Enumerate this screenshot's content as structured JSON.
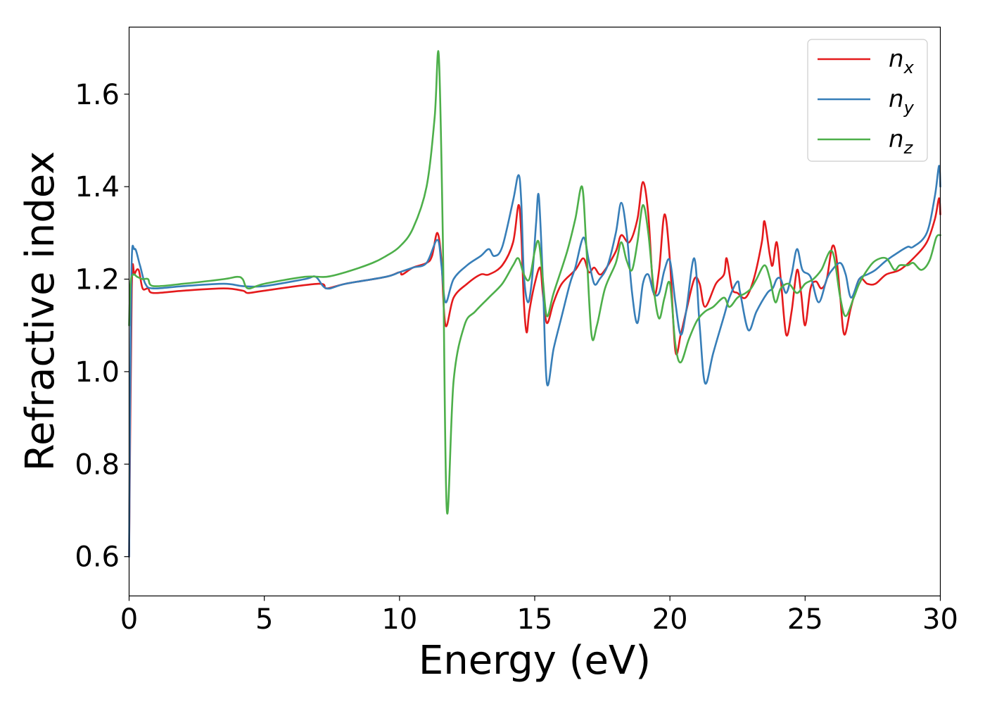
{
  "chart_data": {
    "type": "line",
    "title": "",
    "xlabel": "Energy (eV)",
    "ylabel": "Refractive index",
    "xlim": [
      0,
      30
    ],
    "ylim": [
      0.515,
      1.745
    ],
    "xticks": [
      0,
      5,
      10,
      15,
      20,
      25,
      30
    ],
    "xtick_labels": [
      "0",
      "5",
      "10",
      "15",
      "20",
      "25",
      "30"
    ],
    "yticks": [
      0.6,
      0.8,
      1.0,
      1.2,
      1.4,
      1.6
    ],
    "ytick_labels": [
      "0.6",
      "0.8",
      "1.0",
      "1.2",
      "1.4",
      "1.6"
    ],
    "grid": false,
    "legend_position": "top-right",
    "series": [
      {
        "name": "n_x",
        "label_main": "n",
        "label_sub": "x",
        "color": "#e41a1c",
        "points": [
          [
            0,
            0.6
          ],
          [
            0.1,
            1.18
          ],
          [
            0.2,
            1.21
          ],
          [
            0.35,
            1.22
          ],
          [
            0.5,
            1.18
          ],
          [
            0.7,
            1.18
          ],
          [
            0.9,
            1.17
          ],
          [
            2,
            1.175
          ],
          [
            3.5,
            1.18
          ],
          [
            4.2,
            1.175
          ],
          [
            4.4,
            1.17
          ],
          [
            5,
            1.175
          ],
          [
            7,
            1.19
          ],
          [
            7.3,
            1.18
          ],
          [
            8,
            1.19
          ],
          [
            9.5,
            1.205
          ],
          [
            10,
            1.215
          ],
          [
            10.1,
            1.21
          ],
          [
            10.5,
            1.225
          ],
          [
            11,
            1.235
          ],
          [
            11.2,
            1.25
          ],
          [
            11.4,
            1.3
          ],
          [
            11.55,
            1.24
          ],
          [
            11.7,
            1.1
          ],
          [
            12,
            1.16
          ],
          [
            12.5,
            1.19
          ],
          [
            13,
            1.21
          ],
          [
            13.3,
            1.21
          ],
          [
            13.8,
            1.23
          ],
          [
            14.2,
            1.28
          ],
          [
            14.4,
            1.36
          ],
          [
            14.5,
            1.3
          ],
          [
            14.6,
            1.15
          ],
          [
            14.7,
            1.085
          ],
          [
            14.8,
            1.13
          ],
          [
            15,
            1.19
          ],
          [
            15.2,
            1.225
          ],
          [
            15.3,
            1.17
          ],
          [
            15.45,
            1.105
          ],
          [
            15.7,
            1.15
          ],
          [
            16,
            1.19
          ],
          [
            16.5,
            1.22
          ],
          [
            16.8,
            1.245
          ],
          [
            17,
            1.215
          ],
          [
            17.2,
            1.225
          ],
          [
            17.4,
            1.21
          ],
          [
            17.6,
            1.22
          ],
          [
            18,
            1.26
          ],
          [
            18.2,
            1.295
          ],
          [
            18.5,
            1.28
          ],
          [
            18.8,
            1.33
          ],
          [
            19,
            1.41
          ],
          [
            19.2,
            1.34
          ],
          [
            19.4,
            1.17
          ],
          [
            19.6,
            1.22
          ],
          [
            19.8,
            1.34
          ],
          [
            20,
            1.24
          ],
          [
            20.2,
            1.045
          ],
          [
            20.4,
            1.08
          ],
          [
            20.6,
            1.13
          ],
          [
            20.9,
            1.2
          ],
          [
            21.1,
            1.19
          ],
          [
            21.3,
            1.14
          ],
          [
            21.7,
            1.19
          ],
          [
            22,
            1.21
          ],
          [
            22.1,
            1.245
          ],
          [
            22.3,
            1.18
          ],
          [
            22.5,
            1.17
          ],
          [
            22.8,
            1.16
          ],
          [
            23.1,
            1.2
          ],
          [
            23.4,
            1.28
          ],
          [
            23.5,
            1.325
          ],
          [
            23.7,
            1.25
          ],
          [
            23.8,
            1.23
          ],
          [
            23.95,
            1.28
          ],
          [
            24.1,
            1.2
          ],
          [
            24.3,
            1.08
          ],
          [
            24.5,
            1.13
          ],
          [
            24.7,
            1.22
          ],
          [
            24.85,
            1.17
          ],
          [
            25,
            1.1
          ],
          [
            25.2,
            1.18
          ],
          [
            25.4,
            1.195
          ],
          [
            25.6,
            1.18
          ],
          [
            25.8,
            1.2
          ],
          [
            26,
            1.27
          ],
          [
            26.15,
            1.25
          ],
          [
            26.3,
            1.16
          ],
          [
            26.45,
            1.08
          ],
          [
            26.7,
            1.14
          ],
          [
            27,
            1.2
          ],
          [
            27.3,
            1.19
          ],
          [
            27.6,
            1.19
          ],
          [
            28,
            1.21
          ],
          [
            28.5,
            1.22
          ],
          [
            29,
            1.245
          ],
          [
            29.5,
            1.28
          ],
          [
            29.8,
            1.33
          ],
          [
            29.95,
            1.375
          ],
          [
            30,
            1.34
          ]
        ]
      },
      {
        "name": "n_y",
        "label_main": "n",
        "label_sub": "y",
        "color": "#377eb8",
        "points": [
          [
            0,
            0.6
          ],
          [
            0.08,
            1.2
          ],
          [
            0.2,
            1.265
          ],
          [
            0.4,
            1.23
          ],
          [
            0.6,
            1.19
          ],
          [
            0.9,
            1.18
          ],
          [
            2,
            1.185
          ],
          [
            3.5,
            1.19
          ],
          [
            4.2,
            1.185
          ],
          [
            5,
            1.185
          ],
          [
            6.5,
            1.2
          ],
          [
            6.9,
            1.205
          ],
          [
            7.3,
            1.18
          ],
          [
            8,
            1.19
          ],
          [
            9.5,
            1.205
          ],
          [
            10,
            1.215
          ],
          [
            10.5,
            1.225
          ],
          [
            11,
            1.235
          ],
          [
            11.4,
            1.285
          ],
          [
            11.55,
            1.23
          ],
          [
            11.7,
            1.15
          ],
          [
            12,
            1.2
          ],
          [
            12.5,
            1.23
          ],
          [
            13,
            1.25
          ],
          [
            13.3,
            1.265
          ],
          [
            13.5,
            1.25
          ],
          [
            13.8,
            1.27
          ],
          [
            14.2,
            1.37
          ],
          [
            14.4,
            1.425
          ],
          [
            14.5,
            1.37
          ],
          [
            14.6,
            1.21
          ],
          [
            14.75,
            1.15
          ],
          [
            14.9,
            1.2
          ],
          [
            15.05,
            1.32
          ],
          [
            15.15,
            1.38
          ],
          [
            15.3,
            1.2
          ],
          [
            15.45,
            0.975
          ],
          [
            15.7,
            1.05
          ],
          [
            16,
            1.12
          ],
          [
            16.3,
            1.19
          ],
          [
            16.5,
            1.225
          ],
          [
            16.8,
            1.29
          ],
          [
            17,
            1.24
          ],
          [
            17.2,
            1.19
          ],
          [
            17.4,
            1.2
          ],
          [
            17.7,
            1.23
          ],
          [
            18,
            1.3
          ],
          [
            18.2,
            1.365
          ],
          [
            18.4,
            1.3
          ],
          [
            18.6,
            1.17
          ],
          [
            18.8,
            1.105
          ],
          [
            19,
            1.19
          ],
          [
            19.2,
            1.21
          ],
          [
            19.4,
            1.17
          ],
          [
            19.6,
            1.17
          ],
          [
            19.8,
            1.22
          ],
          [
            20,
            1.24
          ],
          [
            20.2,
            1.15
          ],
          [
            20.4,
            1.08
          ],
          [
            20.6,
            1.13
          ],
          [
            20.9,
            1.245
          ],
          [
            21.1,
            1.1
          ],
          [
            21.3,
            0.975
          ],
          [
            21.6,
            1.04
          ],
          [
            22,
            1.12
          ],
          [
            22.2,
            1.16
          ],
          [
            22.5,
            1.195
          ],
          [
            22.6,
            1.17
          ],
          [
            22.9,
            1.09
          ],
          [
            23.2,
            1.13
          ],
          [
            23.6,
            1.17
          ],
          [
            23.8,
            1.18
          ],
          [
            23.95,
            1.2
          ],
          [
            24.1,
            1.2
          ],
          [
            24.3,
            1.17
          ],
          [
            24.5,
            1.21
          ],
          [
            24.7,
            1.265
          ],
          [
            24.9,
            1.22
          ],
          [
            25.2,
            1.205
          ],
          [
            25.5,
            1.15
          ],
          [
            25.8,
            1.2
          ],
          [
            26,
            1.22
          ],
          [
            26.3,
            1.235
          ],
          [
            26.5,
            1.21
          ],
          [
            26.7,
            1.16
          ],
          [
            27,
            1.2
          ],
          [
            27.3,
            1.21
          ],
          [
            27.6,
            1.22
          ],
          [
            28,
            1.24
          ],
          [
            28.5,
            1.26
          ],
          [
            28.8,
            1.27
          ],
          [
            29,
            1.27
          ],
          [
            29.5,
            1.3
          ],
          [
            29.8,
            1.38
          ],
          [
            29.95,
            1.445
          ],
          [
            30,
            1.4
          ]
        ]
      },
      {
        "name": "n_z",
        "label_main": "n",
        "label_sub": "z",
        "color": "#4daf4a",
        "points": [
          [
            0,
            1.1
          ],
          [
            0.05,
            1.19
          ],
          [
            0.15,
            1.21
          ],
          [
            0.3,
            1.205
          ],
          [
            0.5,
            1.2
          ],
          [
            0.7,
            1.2
          ],
          [
            0.9,
            1.185
          ],
          [
            2,
            1.19
          ],
          [
            3.5,
            1.2
          ],
          [
            4,
            1.205
          ],
          [
            4.2,
            1.2
          ],
          [
            4.4,
            1.18
          ],
          [
            5,
            1.19
          ],
          [
            6.5,
            1.205
          ],
          [
            7.3,
            1.205
          ],
          [
            8,
            1.215
          ],
          [
            9,
            1.235
          ],
          [
            9.5,
            1.25
          ],
          [
            10,
            1.27
          ],
          [
            10.5,
            1.31
          ],
          [
            11,
            1.4
          ],
          [
            11.3,
            1.55
          ],
          [
            11.45,
            1.685
          ],
          [
            11.6,
            1.3
          ],
          [
            11.75,
            0.7
          ],
          [
            12,
            0.98
          ],
          [
            12.4,
            1.1
          ],
          [
            12.8,
            1.13
          ],
          [
            13.3,
            1.16
          ],
          [
            13.8,
            1.19
          ],
          [
            14.2,
            1.23
          ],
          [
            14.4,
            1.245
          ],
          [
            14.6,
            1.21
          ],
          [
            14.8,
            1.2
          ],
          [
            15,
            1.26
          ],
          [
            15.15,
            1.28
          ],
          [
            15.3,
            1.2
          ],
          [
            15.45,
            1.12
          ],
          [
            15.7,
            1.17
          ],
          [
            16.2,
            1.26
          ],
          [
            16.5,
            1.33
          ],
          [
            16.75,
            1.4
          ],
          [
            16.9,
            1.28
          ],
          [
            17.1,
            1.08
          ],
          [
            17.3,
            1.1
          ],
          [
            17.6,
            1.18
          ],
          [
            18,
            1.235
          ],
          [
            18.2,
            1.28
          ],
          [
            18.4,
            1.24
          ],
          [
            18.6,
            1.22
          ],
          [
            18.8,
            1.28
          ],
          [
            19,
            1.36
          ],
          [
            19.2,
            1.3
          ],
          [
            19.4,
            1.18
          ],
          [
            19.6,
            1.115
          ],
          [
            19.8,
            1.16
          ],
          [
            20,
            1.19
          ],
          [
            20.2,
            1.06
          ],
          [
            20.4,
            1.02
          ],
          [
            20.7,
            1.07
          ],
          [
            21,
            1.11
          ],
          [
            21.3,
            1.13
          ],
          [
            21.6,
            1.14
          ],
          [
            22,
            1.16
          ],
          [
            22.2,
            1.14
          ],
          [
            22.5,
            1.16
          ],
          [
            22.8,
            1.17
          ],
          [
            23,
            1.18
          ],
          [
            23.2,
            1.2
          ],
          [
            23.5,
            1.23
          ],
          [
            23.7,
            1.2
          ],
          [
            23.9,
            1.15
          ],
          [
            24.1,
            1.18
          ],
          [
            24.4,
            1.19
          ],
          [
            24.7,
            1.17
          ],
          [
            25,
            1.19
          ],
          [
            25.3,
            1.2
          ],
          [
            25.6,
            1.22
          ],
          [
            26,
            1.26
          ],
          [
            26.3,
            1.16
          ],
          [
            26.5,
            1.12
          ],
          [
            26.8,
            1.16
          ],
          [
            27,
            1.19
          ],
          [
            27.3,
            1.22
          ],
          [
            27.6,
            1.24
          ],
          [
            28,
            1.245
          ],
          [
            28.3,
            1.22
          ],
          [
            28.5,
            1.23
          ],
          [
            28.8,
            1.23
          ],
          [
            29,
            1.235
          ],
          [
            29.3,
            1.22
          ],
          [
            29.6,
            1.24
          ],
          [
            29.85,
            1.29
          ],
          [
            30,
            1.295
          ]
        ]
      }
    ]
  }
}
